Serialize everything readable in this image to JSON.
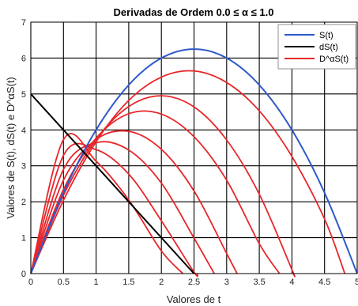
{
  "chart_data": {
    "type": "line",
    "title": "Derivadas de Ordem 0.0 ≤ α ≤ 1.0",
    "xlabel": "Valores de t",
    "ylabel": "Valores de S(t), dS(t) e D^αS(t)",
    "xlim": [
      0,
      5
    ],
    "ylim": [
      0,
      7
    ],
    "xticks": [
      "0",
      "0.5",
      "1",
      "1.5",
      "2",
      "2.5",
      "3",
      "3.5",
      "4",
      "4.5",
      "5"
    ],
    "yticks": [
      "0",
      "1",
      "2",
      "3",
      "4",
      "5",
      "6",
      "7"
    ],
    "grid": true,
    "legend_position": "top-right",
    "series": [
      {
        "name": "S(t)",
        "color": "#2e59c9",
        "points": [
          [
            0,
            0
          ],
          [
            0.5,
            2.25
          ],
          [
            1,
            4
          ],
          [
            1.5,
            5.25
          ],
          [
            2,
            6
          ],
          [
            2.5,
            6.25
          ],
          [
            3,
            6
          ],
          [
            3.5,
            5.25
          ],
          [
            4,
            4
          ],
          [
            4.5,
            2.25
          ],
          [
            5,
            0
          ]
        ]
      },
      {
        "name": "dS(t)",
        "color": "#000000",
        "points": [
          [
            0,
            5
          ],
          [
            0.5,
            4
          ],
          [
            1,
            3
          ],
          [
            1.5,
            2
          ],
          [
            2,
            1
          ],
          [
            2.5,
            0
          ]
        ]
      },
      {
        "name": "D^αS(t)",
        "color": "#e8262a",
        "curves": [
          {
            "points": [
              [
                0,
                0
              ],
              [
                0.5,
                2.04
              ],
              [
                1,
                3.67
              ],
              [
                1.5,
                4.82
              ],
              [
                2,
                5.47
              ],
              [
                2.5,
                5.64
              ],
              [
                3,
                5.32
              ],
              [
                3.5,
                4.53
              ],
              [
                4,
                3.26
              ],
              [
                4.5,
                1.52
              ],
              [
                4.81,
                0
              ]
            ]
          },
          {
            "points": [
              [
                0,
                0
              ],
              [
                0.5,
                2.18
              ],
              [
                1,
                3.73
              ],
              [
                1.5,
                4.65
              ],
              [
                2,
                4.95
              ],
              [
                2.5,
                4.64
              ],
              [
                3,
                3.72
              ],
              [
                3.5,
                2.21
              ],
              [
                4,
                0.11
              ],
              [
                4.02,
                0
              ]
            ]
          },
          {
            "points": [
              [
                0,
                0
              ],
              [
                0.5,
                2.34
              ],
              [
                1,
                3.77
              ],
              [
                1.5,
                4.45
              ],
              [
                2,
                4.44
              ],
              [
                2.5,
                3.81
              ],
              [
                3,
                2.6
              ],
              [
                3.5,
                0.83
              ],
              [
                3.81,
                0
              ]
            ]
          },
          {
            "points": [
              [
                0,
                0
              ],
              [
                0.5,
                2.6
              ],
              [
                1,
                3.73
              ],
              [
                1.5,
                3.96
              ],
              [
                2,
                3.46
              ],
              [
                2.5,
                2.3
              ],
              [
                3,
                0.56
              ],
              [
                3.16,
                0
              ]
            ]
          },
          {
            "points": [
              [
                0,
                0
              ],
              [
                0.5,
                2.9
              ],
              [
                1,
                3.64
              ],
              [
                1.5,
                3.44
              ],
              [
                2,
                2.52
              ],
              [
                2.5,
                0.99
              ],
              [
                2.81,
                0
              ]
            ]
          },
          {
            "points": [
              [
                0,
                0
              ],
              [
                0.5,
                3.29
              ],
              [
                1,
                3.45
              ],
              [
                1.5,
                2.77
              ],
              [
                2,
                1.47
              ],
              [
                2.5,
                0.04
              ],
              [
                2.55,
                0
              ]
            ]
          },
          {
            "points": [
              [
                0,
                0
              ],
              [
                0.5,
                3.73
              ],
              [
                1,
                3.13
              ],
              [
                1.5,
                2.05
              ],
              [
                2,
                0.63
              ],
              [
                2.33,
                0
              ]
            ]
          }
        ]
      }
    ]
  }
}
